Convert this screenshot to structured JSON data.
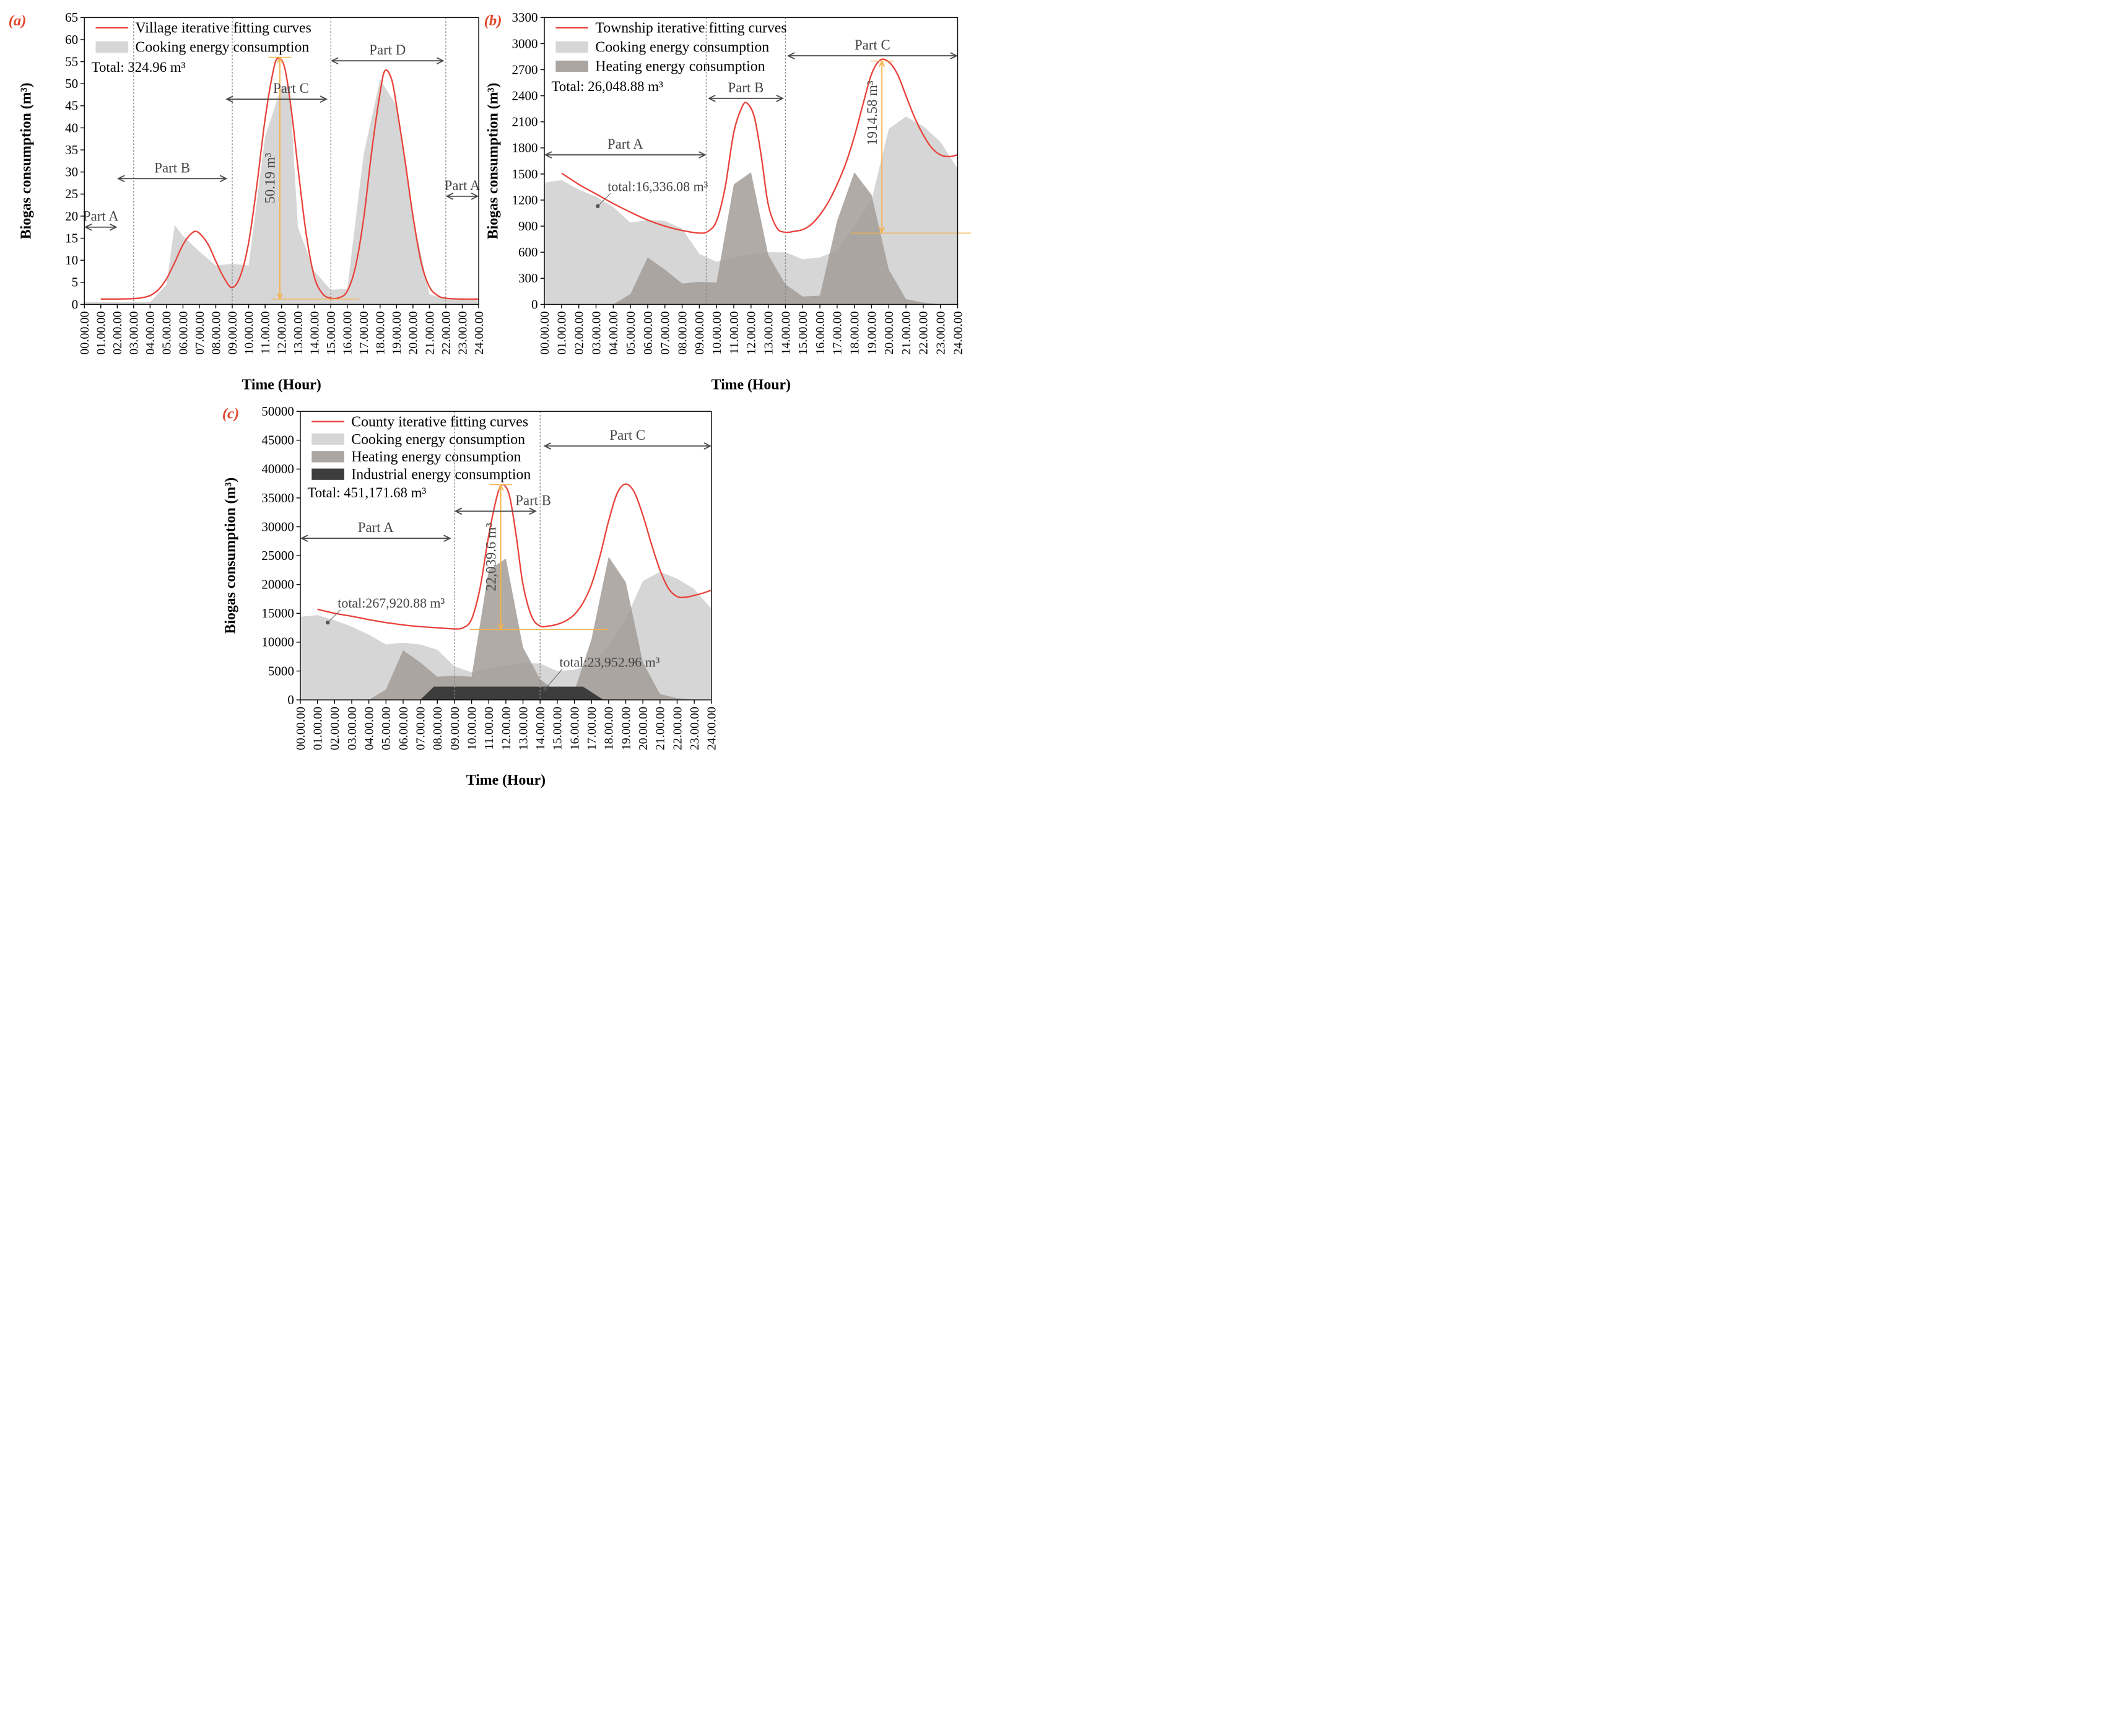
{
  "colors": {
    "fit": "#e8413a",
    "cooking": "#d6d6d6",
    "heating": "#a29c98",
    "industrial": "#3d3d3d",
    "arrow": "#4a4a4a",
    "guide": "#888888",
    "peak": "#f5b24a"
  },
  "x_ticks": [
    "00.00.00",
    "01.00.00",
    "02.00.00",
    "03.00.00",
    "04.00.00",
    "05.00.00",
    "06.00.00",
    "07.00.00",
    "08.00.00",
    "09.00.00",
    "10.00.00",
    "11.00.00",
    "12.00.00",
    "13.00.00",
    "14.00.00",
    "15.00.00",
    "16.00.00",
    "17.00.00",
    "18.00.00",
    "19.00.00",
    "20.00.00",
    "21.00.00",
    "22.00.00",
    "23.00.00",
    "24.00.00"
  ],
  "chart_data": [
    {
      "type": "area",
      "panel_label": "(a)",
      "xlabel": "Time (Hour)",
      "ylabel": "Biogas consumption (m³)",
      "xlim": [
        0,
        24
      ],
      "ylim": [
        0,
        65
      ],
      "yticks": [
        0,
        5,
        10,
        15,
        20,
        25,
        30,
        35,
        40,
        45,
        50,
        55,
        60,
        65
      ],
      "legend_position": "top-left",
      "total_text": "Total: 324.96 m³",
      "series": [
        {
          "name": "Village iterative fitting curves",
          "kind": "line",
          "x": [
            1,
            2,
            3,
            3.5,
            4,
            4.5,
            5,
            5.5,
            6,
            6.5,
            6.9,
            7.5,
            8,
            8.5,
            9,
            9.5,
            10,
            10.5,
            11,
            11.5,
            11.8,
            12.2,
            12.6,
            13,
            13.5,
            14,
            14.5,
            15,
            15.5,
            16,
            16.5,
            17,
            17.5,
            18,
            18.3,
            18.7,
            19,
            19.5,
            20,
            20.5,
            21,
            21.5,
            22,
            23,
            24
          ],
          "y": [
            1.2,
            1.2,
            1.3,
            1.5,
            2.0,
            3.3,
            5.8,
            9.5,
            13.5,
            16.0,
            16.4,
            13.8,
            9.8,
            6.0,
            3.8,
            6.5,
            14.0,
            27.0,
            42.0,
            53.0,
            55.8,
            53.5,
            44.0,
            31.0,
            16.0,
            6.2,
            2.4,
            1.4,
            1.5,
            3.0,
            8.5,
            19.5,
            35.0,
            48.0,
            53.0,
            51.0,
            45.0,
            33.0,
            20.0,
            9.5,
            4.0,
            2.0,
            1.4,
            1.2,
            1.2
          ]
        },
        {
          "name": "Cooking energy consumption",
          "kind": "area",
          "x": [
            0,
            1,
            3,
            3.6,
            4,
            5,
            5.5,
            6,
            7,
            8,
            9,
            10,
            11,
            12,
            12.5,
            13,
            14,
            15,
            16,
            17,
            18,
            19,
            20,
            21,
            22,
            23,
            24
          ],
          "y": [
            0.5,
            0.5,
            0.5,
            0.5,
            0.5,
            4.5,
            18,
            15.5,
            12.0,
            8.8,
            9.2,
            8.8,
            38.0,
            49.5,
            49.0,
            17.5,
            7.5,
            3.3,
            3.5,
            34.0,
            51.0,
            45.0,
            20.0,
            2.3,
            1.2,
            1.0,
            1.0
          ]
        }
      ],
      "dividers": [
        3,
        9,
        15,
        22
      ],
      "parts": [
        {
          "label": "Part A",
          "x1": 0,
          "x2": 2,
          "y": 17.5
        },
        {
          "label": "Part B",
          "x1": 2,
          "x2": 8.7,
          "y": 28.5
        },
        {
          "label": "Part C",
          "x1": 8.6,
          "x2": 14.8,
          "y": 46.5
        },
        {
          "label": "Part D",
          "x1": 15,
          "x2": 21.9,
          "y": 55.2
        },
        {
          "label": "Part A",
          "x1": 22,
          "x2": 24,
          "y": 24.5
        }
      ],
      "peak_annotation": {
        "label": "50.19 m³",
        "x": 11.9,
        "y_bottom": 1.2,
        "y_top": 56
      }
    },
    {
      "type": "area",
      "panel_label": "(b)",
      "xlabel": "Time (Hour)",
      "ylabel": "Biogas consumption (m³)",
      "xlim": [
        0,
        24
      ],
      "ylim": [
        0,
        3300
      ],
      "yticks": [
        0,
        300,
        600,
        900,
        1200,
        1500,
        1800,
        2100,
        2400,
        2700,
        3000,
        3300
      ],
      "legend_position": "top-left",
      "total_text": "Total: 26,048.88 m³",
      "series": [
        {
          "name": "Township iterative fitting curves",
          "kind": "line",
          "x": [
            1,
            2,
            3,
            4,
            5,
            6,
            7,
            8,
            9,
            9.5,
            10,
            10.5,
            11,
            11.5,
            11.8,
            12.2,
            12.6,
            13,
            13.5,
            14,
            14.5,
            15,
            15.5,
            16,
            16.5,
            17,
            17.5,
            18,
            18.5,
            19,
            19.5,
            20,
            20.5,
            21,
            21.5,
            22,
            22.5,
            23,
            23.5,
            24
          ],
          "y": [
            1510,
            1380,
            1270,
            1160,
            1060,
            970,
            900,
            850,
            820,
            840,
            960,
            1350,
            1980,
            2280,
            2310,
            2150,
            1700,
            1150,
            880,
            830,
            840,
            860,
            920,
            1030,
            1180,
            1380,
            1620,
            1930,
            2300,
            2650,
            2810,
            2790,
            2650,
            2400,
            2150,
            1950,
            1800,
            1720,
            1700,
            1720
          ]
        },
        {
          "name": "Cooking energy consumption",
          "kind": "area",
          "x": [
            0,
            1,
            2,
            3,
            4,
            5,
            6,
            7,
            8,
            9,
            10,
            11,
            12,
            13,
            14,
            15,
            16,
            17,
            18,
            19,
            20,
            21,
            22,
            23,
            24
          ],
          "y": [
            1400,
            1430,
            1320,
            1240,
            1120,
            940,
            970,
            960,
            870,
            580,
            490,
            540,
            580,
            600,
            600,
            520,
            540,
            620,
            900,
            1200,
            2020,
            2160,
            2050,
            1870,
            1560
          ]
        },
        {
          "name": "Heating energy consumption",
          "kind": "area",
          "x": [
            0,
            4,
            5,
            6,
            7,
            8,
            9,
            10,
            11,
            12,
            13,
            14,
            15,
            16,
            17,
            18,
            19,
            20,
            21,
            22,
            23,
            24
          ],
          "y": [
            0,
            0,
            120,
            540,
            400,
            240,
            260,
            250,
            1380,
            1520,
            570,
            230,
            90,
            100,
            960,
            1520,
            1260,
            400,
            60,
            20,
            0,
            0
          ]
        }
      ],
      "dividers": [
        9.4,
        14
      ],
      "parts": [
        {
          "label": "Part A",
          "x1": 0,
          "x2": 9.4,
          "y": 1720
        },
        {
          "label": "Part B",
          "x1": 9.5,
          "x2": 13.9,
          "y": 2370
        },
        {
          "label": "Part C",
          "x1": 14.1,
          "x2": 24,
          "y": 2860
        }
      ],
      "peak_annotation": {
        "label": "1914.58 m³",
        "x": 19.6,
        "y_bottom": 820,
        "y_top": 2800
      },
      "sub_annotation": {
        "label": "total:16,336.08 m³",
        "x": 3.1,
        "y": 1130
      }
    },
    {
      "type": "area",
      "panel_label": "(c)",
      "xlabel": "Time (Hour)",
      "ylabel": "Biogas consumption (m³)",
      "xlim": [
        0,
        24
      ],
      "ylim": [
        0,
        50000
      ],
      "yticks": [
        0,
        5000,
        10000,
        15000,
        20000,
        25000,
        30000,
        35000,
        40000,
        45000,
        50000
      ],
      "legend_position": "top-left",
      "total_text": "Total: 451,171.68 m³",
      "series": [
        {
          "name": "County iterative fitting curves",
          "kind": "line",
          "x": [
            1,
            2,
            3,
            4,
            5,
            6,
            7,
            8,
            9,
            9.5,
            10,
            10.5,
            11,
            11.5,
            11.8,
            12.2,
            12.6,
            13,
            13.5,
            14,
            14.5,
            15,
            15.5,
            16,
            16.5,
            17,
            17.5,
            18,
            18.5,
            19,
            19.5,
            20,
            20.5,
            21,
            21.5,
            22,
            22.5,
            23,
            23.5,
            24
          ],
          "y": [
            15700,
            15000,
            14500,
            13900,
            13400,
            13000,
            12700,
            12500,
            12300,
            12500,
            14000,
            19500,
            28500,
            35500,
            37300,
            35500,
            28500,
            20000,
            14500,
            12800,
            12800,
            13100,
            13700,
            14800,
            16800,
            20000,
            25000,
            31000,
            35800,
            37400,
            36000,
            32000,
            27000,
            22500,
            19300,
            17900,
            17800,
            18100,
            18500,
            19000
          ]
        },
        {
          "name": "Cooking energy consumption",
          "kind": "area",
          "x": [
            0,
            1,
            2,
            3,
            4,
            5,
            6,
            7,
            8,
            9,
            10,
            11,
            12,
            13,
            14,
            15,
            16,
            17,
            18,
            19,
            20,
            21,
            22,
            23,
            24
          ],
          "y": [
            14400,
            14700,
            13800,
            12700,
            11300,
            9600,
            9900,
            9600,
            8700,
            5800,
            4800,
            5500,
            6000,
            6400,
            6300,
            5000,
            5200,
            6200,
            9300,
            14000,
            20600,
            22200,
            21000,
            19200,
            15800
          ]
        },
        {
          "name": "Heating energy consumption",
          "kind": "area",
          "x": [
            0,
            4,
            5,
            6,
            7,
            8,
            9,
            10,
            11,
            12,
            13,
            14,
            15,
            16,
            17,
            18,
            19,
            20,
            21,
            22,
            23,
            24
          ],
          "y": [
            0,
            0,
            1800,
            8600,
            6500,
            4000,
            4200,
            4000,
            22500,
            24500,
            9100,
            3600,
            1300,
            1500,
            10500,
            24800,
            20400,
            6500,
            1000,
            300,
            0,
            0
          ]
        },
        {
          "name": "Industrial energy consumption",
          "kind": "area",
          "x": [
            0,
            7,
            7.8,
            8,
            16,
            16.5,
            17.7,
            18,
            24
          ],
          "y": [
            0,
            0,
            2300,
            2300,
            2300,
            2300,
            0,
            0,
            0
          ]
        }
      ],
      "dividers": [
        9,
        14
      ],
      "parts": [
        {
          "label": "Part A",
          "x1": 0,
          "x2": 8.8,
          "y": 28000
        },
        {
          "label": "Part B",
          "x1": 9,
          "x2": 13.8,
          "y": 32700
        },
        {
          "label": "Part C",
          "x1": 14.2,
          "x2": 24,
          "y": 44000
        }
      ],
      "peak_annotation": {
        "label": "22,039.6 m³",
        "x": 11.7,
        "y_bottom": 12200,
        "y_top": 37300
      },
      "sub_annotations": [
        {
          "label": "total:267,920.88 m³",
          "x": 1.6,
          "y": 13400
        },
        {
          "label": "total:23,952.96 m³",
          "x": 14.3,
          "y": 1900
        }
      ]
    }
  ]
}
